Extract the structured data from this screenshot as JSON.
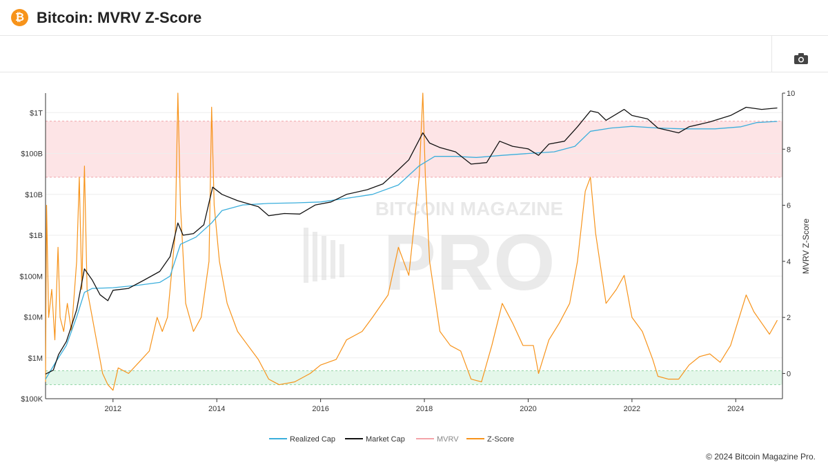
{
  "header": {
    "logo_glyph": "₿",
    "title": "Bitcoin: MVRV Z-Score"
  },
  "toolbar": {
    "camera_icon": "camera-icon"
  },
  "footer": {
    "copyright": "© 2024 Bitcoin Magazine Pro."
  },
  "watermark": {
    "top": "BITCOIN MAGAZINE",
    "bottom": "PRO"
  },
  "colors": {
    "realized_cap": "#3aaedc",
    "market_cap": "#111111",
    "mvrv": "#f4a3a8",
    "zscore": "#f7931a",
    "red_band": "#fde4e6",
    "green_band": "#e4f7ea",
    "brand": "#f7931a"
  },
  "chart_data": {
    "type": "line",
    "grid": true,
    "legend_position": "bottom",
    "x_axis": {
      "range": [
        2010.7,
        2024.9
      ],
      "ticks": [
        "2012",
        "2014",
        "2016",
        "2018",
        "2020",
        "2022",
        "2024"
      ]
    },
    "y_left": {
      "scale": "log",
      "range": [
        100000,
        3000000000000
      ],
      "ticks": [
        {
          "label": "$1T",
          "value": 1000000000000
        },
        {
          "label": "$100B",
          "value": 100000000000
        },
        {
          "label": "$10B",
          "value": 10000000000
        },
        {
          "label": "$1B",
          "value": 1000000000
        },
        {
          "label": "$100M",
          "value": 100000000
        },
        {
          "label": "$10M",
          "value": 10000000
        },
        {
          "label": "$1M",
          "value": 1000000
        },
        {
          "label": "$100K",
          "value": 100000
        }
      ]
    },
    "y_right": {
      "label": "MVRV Z-Score",
      "range": [
        -0.9,
        10
      ],
      "ticks": [
        "10",
        "8",
        "6",
        "4",
        "2",
        "0"
      ]
    },
    "bands": [
      {
        "name": "overvalued",
        "from": 7,
        "to": 9
      },
      {
        "name": "undervalued",
        "from": -0.4,
        "to": 0.1
      }
    ],
    "legend": [
      "Realized Cap",
      "Market Cap",
      "MVRV",
      "Z-Score"
    ],
    "series": [
      {
        "name": "Market Cap",
        "axis": "left",
        "points": [
          [
            2010.7,
            400000
          ],
          [
            2010.85,
            500000
          ],
          [
            2010.95,
            1200000
          ],
          [
            2011.1,
            2500000
          ],
          [
            2011.2,
            6000000
          ],
          [
            2011.3,
            15000000
          ],
          [
            2011.45,
            150000000
          ],
          [
            2011.6,
            80000000
          ],
          [
            2011.75,
            35000000
          ],
          [
            2011.9,
            25000000
          ],
          [
            2012.0,
            45000000
          ],
          [
            2012.3,
            50000000
          ],
          [
            2012.6,
            80000000
          ],
          [
            2012.9,
            130000000
          ],
          [
            2013.1,
            300000000
          ],
          [
            2013.25,
            2000000000
          ],
          [
            2013.35,
            1000000000
          ],
          [
            2013.55,
            1100000000
          ],
          [
            2013.75,
            1800000000
          ],
          [
            2013.92,
            15000000000
          ],
          [
            2014.1,
            10000000000
          ],
          [
            2014.4,
            7000000000
          ],
          [
            2014.8,
            5000000000
          ],
          [
            2015.0,
            3000000000
          ],
          [
            2015.3,
            3400000000
          ],
          [
            2015.6,
            3300000000
          ],
          [
            2015.9,
            5500000000
          ],
          [
            2016.2,
            6500000000
          ],
          [
            2016.5,
            10000000000
          ],
          [
            2016.9,
            13000000000
          ],
          [
            2017.2,
            18000000000
          ],
          [
            2017.5,
            40000000000
          ],
          [
            2017.7,
            70000000000
          ],
          [
            2017.97,
            320000000000
          ],
          [
            2018.1,
            180000000000
          ],
          [
            2018.3,
            140000000000
          ],
          [
            2018.6,
            110000000000
          ],
          [
            2018.9,
            55000000000
          ],
          [
            2019.2,
            60000000000
          ],
          [
            2019.45,
            200000000000
          ],
          [
            2019.7,
            150000000000
          ],
          [
            2020.0,
            130000000000
          ],
          [
            2020.2,
            90000000000
          ],
          [
            2020.4,
            170000000000
          ],
          [
            2020.7,
            200000000000
          ],
          [
            2020.95,
            450000000000
          ],
          [
            2021.2,
            1100000000000
          ],
          [
            2021.35,
            1000000000000
          ],
          [
            2021.5,
            650000000000
          ],
          [
            2021.85,
            1200000000000
          ],
          [
            2022.0,
            850000000000
          ],
          [
            2022.3,
            700000000000
          ],
          [
            2022.5,
            420000000000
          ],
          [
            2022.9,
            320000000000
          ],
          [
            2023.1,
            450000000000
          ],
          [
            2023.5,
            590000000000
          ],
          [
            2023.9,
            850000000000
          ],
          [
            2024.2,
            1350000000000
          ],
          [
            2024.5,
            1200000000000
          ],
          [
            2024.8,
            1300000000000
          ]
        ]
      },
      {
        "name": "Realized Cap",
        "axis": "left",
        "points": [
          [
            2010.7,
            300000
          ],
          [
            2010.9,
            800000
          ],
          [
            2011.1,
            2000000
          ],
          [
            2011.3,
            10000000
          ],
          [
            2011.45,
            40000000
          ],
          [
            2011.6,
            50000000
          ],
          [
            2012.0,
            52000000
          ],
          [
            2012.5,
            60000000
          ],
          [
            2012.9,
            70000000
          ],
          [
            2013.1,
            100000000
          ],
          [
            2013.3,
            600000000
          ],
          [
            2013.6,
            900000000
          ],
          [
            2013.9,
            2000000000
          ],
          [
            2014.1,
            4000000000
          ],
          [
            2014.5,
            5500000000
          ],
          [
            2015.0,
            6000000000
          ],
          [
            2015.5,
            6200000000
          ],
          [
            2016.0,
            6500000000
          ],
          [
            2016.5,
            8000000000
          ],
          [
            2017.0,
            10000000000
          ],
          [
            2017.5,
            17000000000
          ],
          [
            2017.9,
            50000000000
          ],
          [
            2018.2,
            85000000000
          ],
          [
            2018.6,
            85000000000
          ],
          [
            2019.0,
            80000000000
          ],
          [
            2019.5,
            90000000000
          ],
          [
            2020.0,
            100000000000
          ],
          [
            2020.5,
            110000000000
          ],
          [
            2020.9,
            150000000000
          ],
          [
            2021.2,
            350000000000
          ],
          [
            2021.6,
            420000000000
          ],
          [
            2022.0,
            460000000000
          ],
          [
            2022.5,
            420000000000
          ],
          [
            2023.0,
            400000000000
          ],
          [
            2023.6,
            400000000000
          ],
          [
            2024.1,
            450000000000
          ],
          [
            2024.4,
            570000000000
          ],
          [
            2024.8,
            610000000000
          ]
        ]
      },
      {
        "name": "Z-Score",
        "axis": "right",
        "points": [
          [
            2010.7,
            -0.3
          ],
          [
            2010.72,
            6.0
          ],
          [
            2010.76,
            2.0
          ],
          [
            2010.82,
            3.0
          ],
          [
            2010.88,
            1.2
          ],
          [
            2010.94,
            4.5
          ],
          [
            2010.98,
            2.0
          ],
          [
            2011.05,
            1.5
          ],
          [
            2011.12,
            2.5
          ],
          [
            2011.2,
            1.5
          ],
          [
            2011.3,
            4.0
          ],
          [
            2011.35,
            7.0
          ],
          [
            2011.4,
            3.0
          ],
          [
            2011.45,
            7.4
          ],
          [
            2011.5,
            3.0
          ],
          [
            2011.6,
            2.0
          ],
          [
            2011.7,
            1.0
          ],
          [
            2011.8,
            0.0
          ],
          [
            2011.9,
            -0.4
          ],
          [
            2012.0,
            -0.6
          ],
          [
            2012.1,
            0.2
          ],
          [
            2012.3,
            0.0
          ],
          [
            2012.5,
            0.4
          ],
          [
            2012.7,
            0.8
          ],
          [
            2012.85,
            2.0
          ],
          [
            2012.95,
            1.5
          ],
          [
            2013.05,
            2.0
          ],
          [
            2013.2,
            5.0
          ],
          [
            2013.25,
            10.0
          ],
          [
            2013.3,
            6.0
          ],
          [
            2013.4,
            2.5
          ],
          [
            2013.55,
            1.5
          ],
          [
            2013.7,
            2.0
          ],
          [
            2013.85,
            4.0
          ],
          [
            2013.9,
            9.5
          ],
          [
            2013.95,
            6.0
          ],
          [
            2014.05,
            4.0
          ],
          [
            2014.2,
            2.5
          ],
          [
            2014.4,
            1.5
          ],
          [
            2014.6,
            1.0
          ],
          [
            2014.8,
            0.5
          ],
          [
            2015.0,
            -0.2
          ],
          [
            2015.2,
            -0.4
          ],
          [
            2015.5,
            -0.3
          ],
          [
            2015.8,
            0.0
          ],
          [
            2016.0,
            0.3
          ],
          [
            2016.3,
            0.5
          ],
          [
            2016.5,
            1.2
          ],
          [
            2016.8,
            1.5
          ],
          [
            2017.0,
            2.0
          ],
          [
            2017.3,
            2.8
          ],
          [
            2017.5,
            4.5
          ],
          [
            2017.7,
            3.5
          ],
          [
            2017.9,
            7.0
          ],
          [
            2017.97,
            10.0
          ],
          [
            2018.02,
            7.0
          ],
          [
            2018.1,
            4.0
          ],
          [
            2018.3,
            1.5
          ],
          [
            2018.5,
            1.0
          ],
          [
            2018.7,
            0.8
          ],
          [
            2018.9,
            -0.2
          ],
          [
            2019.1,
            -0.3
          ],
          [
            2019.3,
            1.0
          ],
          [
            2019.5,
            2.5
          ],
          [
            2019.7,
            1.8
          ],
          [
            2019.9,
            1.0
          ],
          [
            2020.1,
            1.0
          ],
          [
            2020.2,
            0.0
          ],
          [
            2020.4,
            1.2
          ],
          [
            2020.6,
            1.8
          ],
          [
            2020.8,
            2.5
          ],
          [
            2020.95,
            4.0
          ],
          [
            2021.1,
            6.5
          ],
          [
            2021.2,
            7.0
          ],
          [
            2021.3,
            5.0
          ],
          [
            2021.5,
            2.5
          ],
          [
            2021.7,
            3.0
          ],
          [
            2021.85,
            3.5
          ],
          [
            2022.0,
            2.0
          ],
          [
            2022.2,
            1.5
          ],
          [
            2022.4,
            0.5
          ],
          [
            2022.5,
            -0.1
          ],
          [
            2022.7,
            -0.2
          ],
          [
            2022.9,
            -0.2
          ],
          [
            2023.1,
            0.3
          ],
          [
            2023.3,
            0.6
          ],
          [
            2023.5,
            0.7
          ],
          [
            2023.7,
            0.4
          ],
          [
            2023.9,
            1.0
          ],
          [
            2024.0,
            1.6
          ],
          [
            2024.2,
            2.8
          ],
          [
            2024.35,
            2.2
          ],
          [
            2024.5,
            1.8
          ],
          [
            2024.65,
            1.4
          ],
          [
            2024.8,
            1.9
          ]
        ]
      },
      {
        "name": "MVRV",
        "axis": "right",
        "points": []
      }
    ]
  }
}
